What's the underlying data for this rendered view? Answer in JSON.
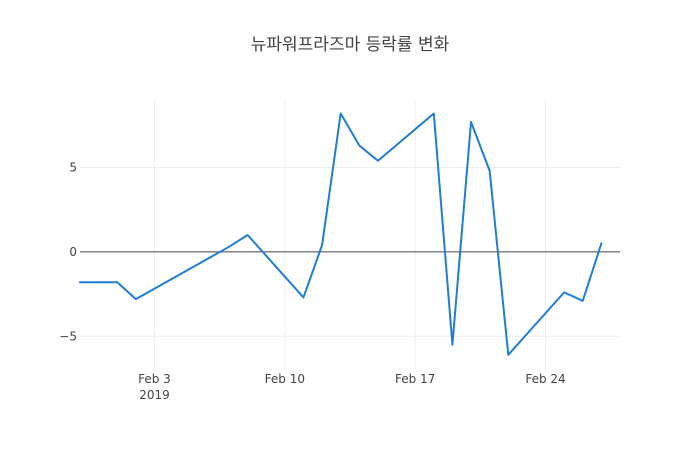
{
  "chart_data": {
    "type": "line",
    "title": "뉴파워프라즈마 등락률 변화",
    "xlabel": "",
    "ylabel": "",
    "xlim": [
      "2019-01-30",
      "2019-02-28"
    ],
    "ylim": [
      -7,
      9
    ],
    "grid": true,
    "legend": "none",
    "x_ticks": [
      {
        "date": "2019-02-03",
        "label": "Feb 3",
        "sublabel": "2019"
      },
      {
        "date": "2019-02-10",
        "label": "Feb 10",
        "sublabel": ""
      },
      {
        "date": "2019-02-17",
        "label": "Feb 17",
        "sublabel": ""
      },
      {
        "date": "2019-02-24",
        "label": "Feb 24",
        "sublabel": ""
      }
    ],
    "y_ticks": [
      {
        "value": 5,
        "label": "5"
      },
      {
        "value": 0,
        "label": "0"
      },
      {
        "value": -5,
        "label": "−5"
      }
    ],
    "series": [
      {
        "color": "#1f7fd8",
        "x": [
          "2019-01-30",
          "2019-01-31",
          "2019-02-01",
          "2019-02-02",
          "2019-02-07",
          "2019-02-08",
          "2019-02-11",
          "2019-02-12",
          "2019-02-13",
          "2019-02-14",
          "2019-02-15",
          "2019-02-18",
          "2019-02-19",
          "2019-02-20",
          "2019-02-21",
          "2019-02-22",
          "2019-02-25",
          "2019-02-26",
          "2019-02-27"
        ],
        "values": [
          -1.8,
          -1.8,
          -1.8,
          -2.8,
          0.3,
          1.0,
          -2.7,
          0.4,
          8.2,
          6.3,
          5.4,
          8.2,
          -5.5,
          7.7,
          4.8,
          -6.1,
          -2.4,
          -2.9,
          0.5
        ]
      }
    ]
  }
}
